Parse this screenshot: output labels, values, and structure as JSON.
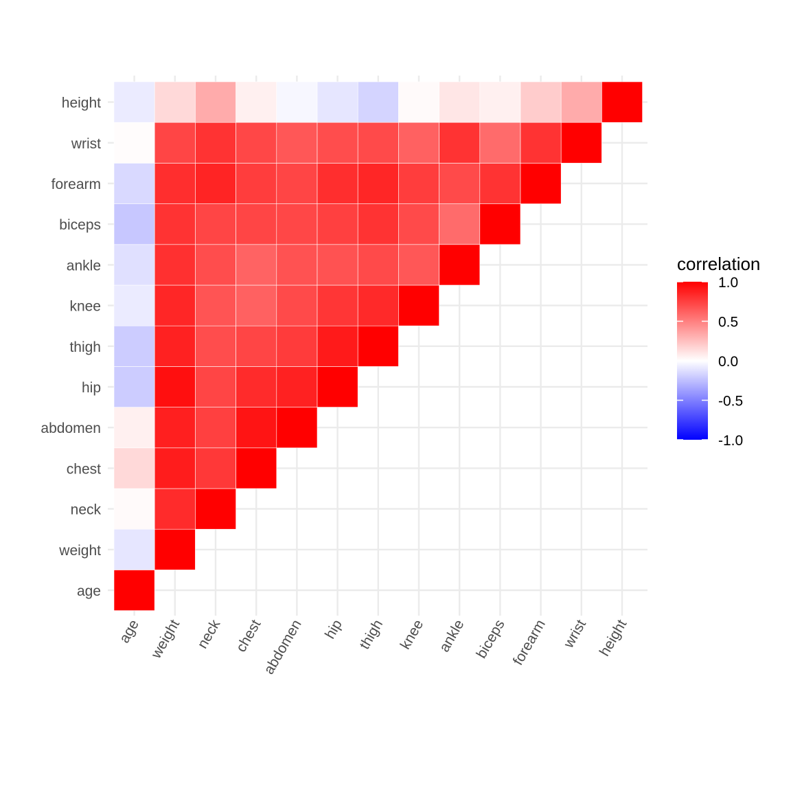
{
  "chart_data": {
    "type": "heatmap",
    "title": "",
    "xlabel": "",
    "ylabel": "",
    "variables": [
      "age",
      "weight",
      "neck",
      "chest",
      "abdomen",
      "hip",
      "thigh",
      "knee",
      "ankle",
      "biceps",
      "forearm",
      "wrist",
      "height"
    ],
    "layout": "lower-triangle (x index <= y index)",
    "matrix": [
      [
        1.0,
        -0.1,
        0.02,
        0.15,
        0.06,
        -0.2,
        -0.2,
        -0.08,
        -0.12,
        -0.22,
        -0.15,
        0.01,
        -0.08
      ],
      [
        -0.1,
        1.0,
        0.83,
        0.89,
        0.88,
        0.94,
        0.87,
        0.85,
        0.81,
        0.8,
        0.82,
        0.73,
        0.15
      ],
      [
        0.02,
        0.83,
        1.0,
        0.78,
        0.75,
        0.73,
        0.7,
        0.67,
        0.7,
        0.73,
        0.86,
        0.8,
        0.33
      ],
      [
        0.15,
        0.89,
        0.78,
        1.0,
        0.92,
        0.83,
        0.73,
        0.62,
        0.61,
        0.73,
        0.76,
        0.72,
        0.06
      ],
      [
        0.06,
        0.88,
        0.75,
        0.92,
        1.0,
        0.87,
        0.77,
        0.71,
        0.68,
        0.72,
        0.73,
        0.66,
        -0.03
      ],
      [
        -0.2,
        0.94,
        0.73,
        0.83,
        0.87,
        1.0,
        0.9,
        0.79,
        0.68,
        0.75,
        0.82,
        0.7,
        -0.1
      ],
      [
        -0.2,
        0.87,
        0.7,
        0.73,
        0.77,
        0.9,
        1.0,
        0.84,
        0.71,
        0.8,
        0.85,
        0.71,
        -0.17
      ],
      [
        -0.08,
        0.85,
        0.67,
        0.62,
        0.71,
        0.79,
        0.84,
        1.0,
        0.66,
        0.71,
        0.76,
        0.62,
        0.02
      ],
      [
        -0.12,
        0.81,
        0.7,
        0.61,
        0.68,
        0.68,
        0.71,
        0.66,
        1.0,
        0.58,
        0.71,
        0.8,
        0.1
      ],
      [
        -0.22,
        0.8,
        0.73,
        0.73,
        0.72,
        0.75,
        0.8,
        0.71,
        0.58,
        1.0,
        0.8,
        0.58,
        0.06
      ],
      [
        -0.15,
        0.82,
        0.86,
        0.76,
        0.73,
        0.82,
        0.85,
        0.76,
        0.71,
        0.8,
        1.0,
        0.8,
        0.2
      ],
      [
        0.01,
        0.73,
        0.8,
        0.72,
        0.66,
        0.7,
        0.71,
        0.62,
        0.8,
        0.58,
        0.8,
        1.0,
        0.33
      ],
      [
        -0.08,
        0.15,
        0.33,
        0.06,
        -0.03,
        -0.1,
        -0.17,
        0.02,
        0.1,
        0.06,
        0.2,
        0.33,
        1.0
      ]
    ],
    "color_scale": {
      "low": "#0000FF",
      "mid": "#FFFFFF",
      "high": "#FF0000",
      "limits": [
        -1,
        1
      ]
    },
    "legend": {
      "title": "correlation",
      "placement": "right",
      "ticks": [
        1.0,
        0.5,
        0.0,
        -0.5,
        -1.0
      ],
      "tick_labels": [
        "1.0",
        "0.5",
        "0.0",
        "-0.5",
        "-1.0"
      ]
    },
    "grid": true,
    "grid_color": "#EBEBEB"
  }
}
